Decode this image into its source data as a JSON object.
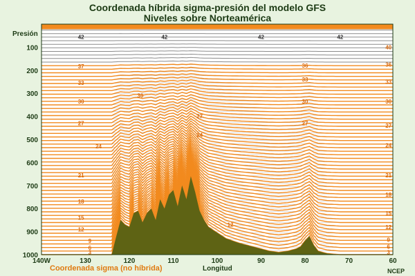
{
  "title": "Coordenada híbrida sigma-presión del modelo GFS",
  "subtitle": "Niveles sobre Norteamérica",
  "legend_label": "Coordenada sigma (no híbrida)",
  "credit": "NCEP",
  "colors": {
    "background": "#e8f3e0",
    "plot_background": "#ffffff",
    "sigma_orange": "#f28a1e",
    "hybrid_gray": "#8a8a8a",
    "terrain": "#5e6314",
    "text": "#1c3a14"
  },
  "chart_data": {
    "type": "line",
    "title": "Coordenada híbrida sigma-presión del modelo GFS",
    "subtitle": "Niveles sobre Norteamérica",
    "xlabel": "Longitud",
    "ylabel": "Presión",
    "xlim": [
      140,
      60
    ],
    "ylim": [
      1000,
      0
    ],
    "y_inverted": true,
    "x_ticks": [
      {
        "value": 140,
        "label": "140W"
      },
      {
        "value": 130,
        "label": "130"
      },
      {
        "value": 120,
        "label": "120"
      },
      {
        "value": 110,
        "label": "110"
      },
      {
        "value": 100,
        "label": "100"
      },
      {
        "value": 90,
        "label": "90"
      },
      {
        "value": 80,
        "label": "80"
      },
      {
        "value": 70,
        "label": "70"
      },
      {
        "value": 60,
        "label": "60"
      }
    ],
    "y_ticks": [
      100,
      200,
      300,
      400,
      500,
      600,
      700,
      800,
      900,
      1000
    ],
    "surface_pressure": {
      "x": [
        140,
        124,
        123.5,
        122,
        121,
        120,
        119,
        118,
        117,
        116,
        115,
        114,
        113,
        112,
        111,
        110,
        109,
        108,
        107,
        106,
        105,
        104,
        103,
        102,
        100,
        98,
        95,
        92,
        90,
        88,
        86,
        84,
        82,
        81,
        80,
        79,
        78,
        77,
        75,
        72,
        70,
        65,
        60
      ],
      "y": [
        1000,
        1000,
        960,
        850,
        870,
        880,
        820,
        810,
        860,
        820,
        800,
        850,
        760,
        800,
        740,
        720,
        790,
        700,
        760,
        660,
        730,
        810,
        850,
        880,
        905,
        930,
        950,
        965,
        975,
        985,
        990,
        985,
        975,
        965,
        940,
        920,
        960,
        985,
        995,
        1000,
        1000,
        1000,
        1000
      ]
    },
    "level_labels": [
      {
        "x": 131,
        "p": 55,
        "text": "42"
      },
      {
        "x": 131,
        "p": 183,
        "text": "37"
      },
      {
        "x": 131,
        "p": 255,
        "text": "33"
      },
      {
        "x": 131,
        "p": 335,
        "text": "30"
      },
      {
        "x": 131,
        "p": 430,
        "text": "27"
      },
      {
        "x": 127,
        "p": 530,
        "text": "24"
      },
      {
        "x": 131,
        "p": 655,
        "text": "21"
      },
      {
        "x": 131,
        "p": 770,
        "text": "18"
      },
      {
        "x": 131,
        "p": 840,
        "text": "15"
      },
      {
        "x": 131,
        "p": 890,
        "text": "12"
      },
      {
        "x": 129,
        "p": 940,
        "text": "9"
      },
      {
        "x": 129,
        "p": 970,
        "text": "6"
      },
      {
        "x": 129,
        "p": 990,
        "text": "3"
      },
      {
        "x": 112,
        "p": 55,
        "text": "42"
      },
      {
        "x": 90,
        "p": 55,
        "text": "42"
      },
      {
        "x": 72,
        "p": 55,
        "text": "42"
      },
      {
        "x": 117.5,
        "p": 310,
        "text": "30"
      },
      {
        "x": 104,
        "p": 400,
        "text": "27"
      },
      {
        "x": 104,
        "p": 480,
        "text": "24"
      },
      {
        "x": 80,
        "p": 180,
        "text": "36"
      },
      {
        "x": 80,
        "p": 240,
        "text": "33"
      },
      {
        "x": 80,
        "p": 335,
        "text": "30"
      },
      {
        "x": 80,
        "p": 430,
        "text": "27"
      },
      {
        "x": 61,
        "p": 100,
        "text": "40"
      },
      {
        "x": 61,
        "p": 175,
        "text": "36"
      },
      {
        "x": 61,
        "p": 250,
        "text": "33"
      },
      {
        "x": 61,
        "p": 335,
        "text": "30"
      },
      {
        "x": 61,
        "p": 440,
        "text": "27"
      },
      {
        "x": 61,
        "p": 525,
        "text": "24"
      },
      {
        "x": 61,
        "p": 655,
        "text": "21"
      },
      {
        "x": 61,
        "p": 740,
        "text": "18"
      },
      {
        "x": 61,
        "p": 820,
        "text": "15"
      },
      {
        "x": 61,
        "p": 880,
        "text": "12"
      },
      {
        "x": 61,
        "p": 935,
        "text": "9"
      },
      {
        "x": 61,
        "p": 965,
        "text": "6"
      },
      {
        "x": 61,
        "p": 990,
        "text": "3"
      },
      {
        "x": 97,
        "p": 870,
        "text": "12"
      }
    ],
    "num_levels": 64,
    "pure_pressure_top_levels": 10,
    "grid": false
  }
}
